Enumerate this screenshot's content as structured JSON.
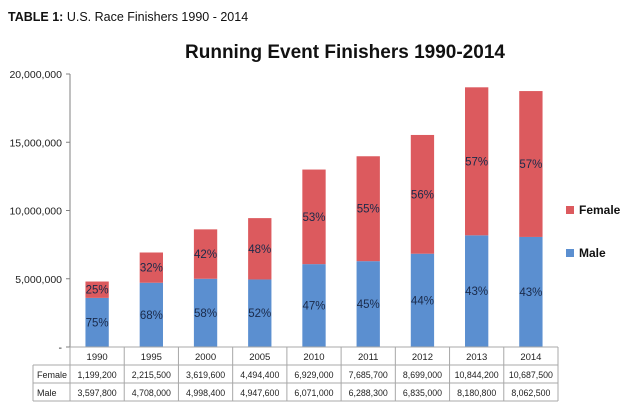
{
  "caption": {
    "prefix": "TABLE 1:",
    "text": "U.S. Race Finishers 1990 - 2014"
  },
  "colors": {
    "female": "#dc5a5e",
    "male": "#5b8fd0",
    "axis": "#808080",
    "grid": "#a8a8a8"
  },
  "chart_data": {
    "type": "bar",
    "stacked": true,
    "title": "Running Event Finishers 1990-2014",
    "categories": [
      "1990",
      "1995",
      "2000",
      "2005",
      "2010",
      "2011",
      "2012",
      "2013",
      "2014"
    ],
    "series": [
      {
        "name": "Male",
        "color": "#5b8fd0",
        "values": [
          3597800,
          4708000,
          4998400,
          4947600,
          6071000,
          6288300,
          6835000,
          8180800,
          8062500
        ],
        "labels": [
          "75%",
          "68%",
          "58%",
          "52%",
          "47%",
          "45%",
          "44%",
          "43%",
          "43%"
        ]
      },
      {
        "name": "Female",
        "color": "#dc5a5e",
        "values": [
          1199200,
          2215500,
          3619600,
          4494400,
          6929000,
          7685700,
          8699000,
          10844200,
          10687500
        ],
        "labels": [
          "25%",
          "32%",
          "42%",
          "48%",
          "53%",
          "55%",
          "56%",
          "57%",
          "57%"
        ]
      }
    ],
    "ylim": [
      0,
      20000000
    ],
    "yticks": [
      0,
      5000000,
      10000000,
      15000000,
      20000000
    ],
    "ytick_labels": [
      "-",
      "5,000,000",
      "10,000,000",
      "15,000,000",
      "20,000,000"
    ],
    "grid": false,
    "legend_position": "right",
    "legend_order": [
      "Female",
      "Male"
    ],
    "data_table": {
      "rows": [
        {
          "label": "Female",
          "cells": [
            "1,199,200",
            "2,215,500",
            "3,619,600",
            "4,494,400",
            "6,929,000",
            "7,685,700",
            "8,699,000",
            "10,844,200",
            "10,687,500"
          ]
        },
        {
          "label": "Male",
          "cells": [
            "3,597,800",
            "4,708,000",
            "4,998,400",
            "4,947,600",
            "6,071,000",
            "6,288,300",
            "6,835,000",
            "8,180,800",
            "8,062,500"
          ]
        }
      ]
    }
  }
}
